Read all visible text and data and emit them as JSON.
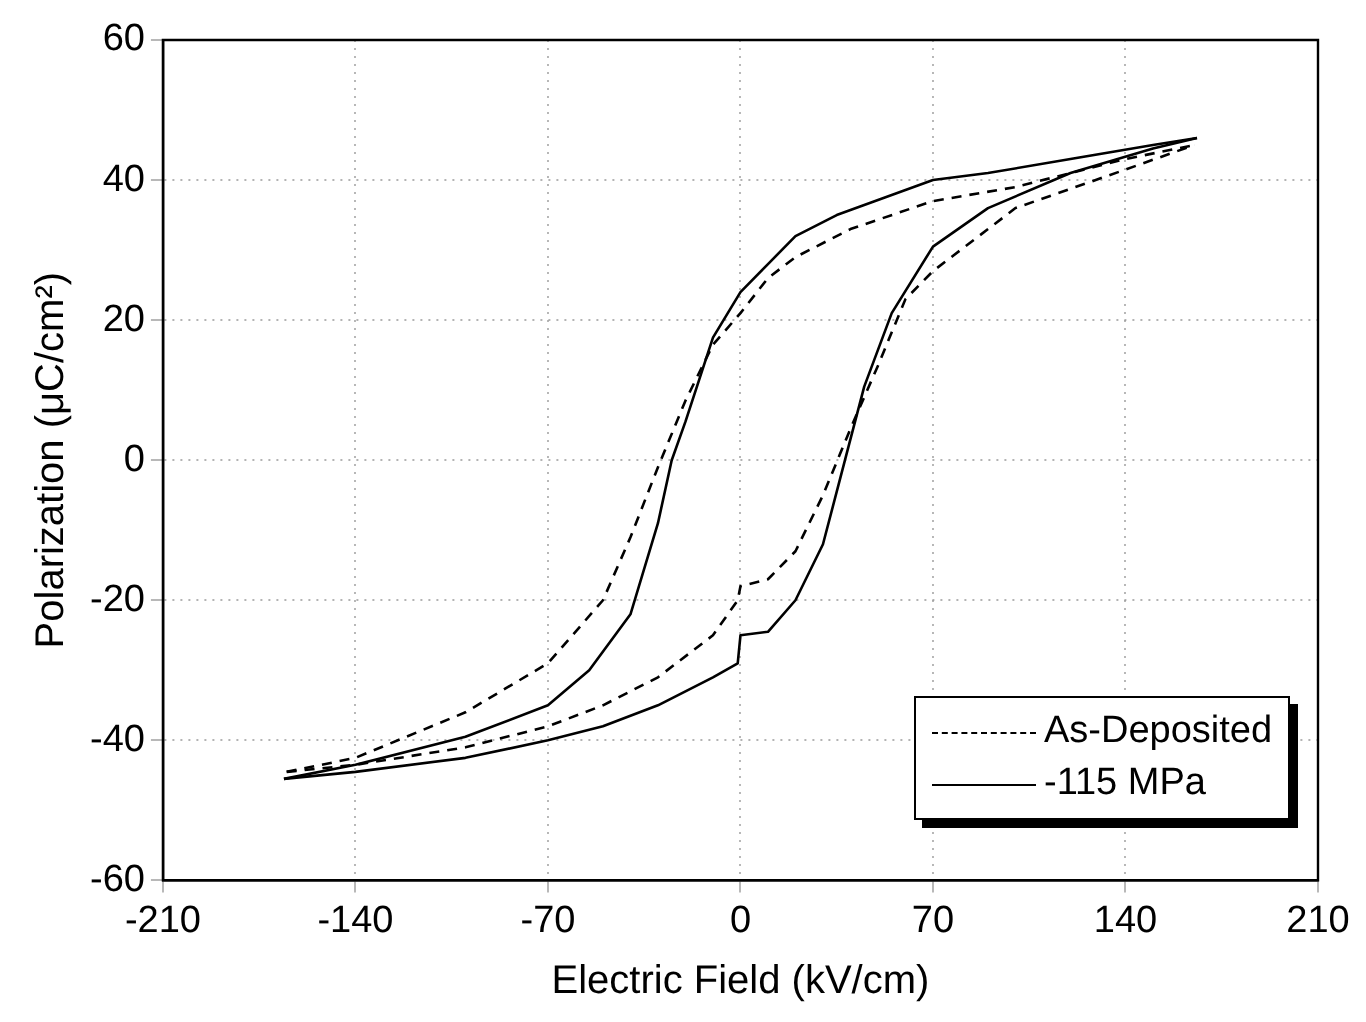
{
  "chart_data": {
    "type": "line",
    "xlabel": "Electric Field (kV/cm)",
    "ylabel": "Polarization (μC/cm²)",
    "xlim": [
      -210,
      210
    ],
    "xticks": [
      -210,
      -140,
      -70,
      0,
      70,
      140,
      210
    ],
    "ylim": [
      -60,
      60
    ],
    "yticks": [
      -60,
      -40,
      -20,
      0,
      20,
      40,
      60
    ],
    "grid": true,
    "legend": "bottom right",
    "marker": "none",
    "series": [
      {
        "name": "As-Deposited",
        "color": "#000000",
        "line_style": "dashed",
        "x": [
          -165,
          -140,
          -100,
          -70,
          -50,
          -40,
          -30,
          -20,
          -10,
          0,
          10,
          20,
          40,
          70,
          100,
          140,
          165
        ],
        "values": [
          -44.5,
          -42.5,
          -36,
          -29,
          -20,
          -11,
          -1,
          8.5,
          16.5,
          21,
          26,
          29,
          33,
          37,
          39,
          43,
          45
        ]
      },
      {
        "color": "#000000",
        "line_style": "dashed",
        "x": [
          -165,
          -140,
          -100,
          -70,
          -50,
          -30,
          -10,
          -1,
          0,
          10,
          20,
          30,
          40,
          50,
          60,
          70,
          100,
          140,
          165
        ],
        "values": [
          -44.5,
          -43.5,
          -41,
          -38,
          -35,
          -31,
          -25,
          -20,
          -18,
          -17,
          -13,
          -5,
          4.5,
          13.5,
          23,
          27,
          36,
          41.5,
          45
        ]
      },
      {
        "name": "-115 MPa",
        "color": "#000000",
        "line_style": "solid",
        "x": [
          -166,
          -140,
          -100,
          -70,
          -55,
          -40,
          -30,
          -25,
          -20,
          -10,
          0,
          10,
          20,
          35,
          70,
          90,
          120,
          150,
          166
        ],
        "values": [
          -45.5,
          -43.5,
          -39.5,
          -35,
          -30,
          -22,
          -9,
          0,
          5.5,
          17.5,
          24,
          28,
          32,
          35,
          40,
          41,
          43,
          45,
          46
        ]
      },
      {
        "color": "#000000",
        "line_style": "solid",
        "x": [
          -166,
          -140,
          -100,
          -70,
          -50,
          -30,
          -10,
          -1,
          0,
          10,
          20,
          30,
          38,
          45,
          55,
          70,
          90,
          120,
          150,
          166
        ],
        "values": [
          -45.5,
          -44.5,
          -42.5,
          -40,
          -38,
          -35,
          -31,
          -29,
          -25,
          -24.5,
          -20,
          -12,
          0,
          10.5,
          21,
          30.5,
          36,
          41,
          44.5,
          46
        ]
      }
    ]
  }
}
